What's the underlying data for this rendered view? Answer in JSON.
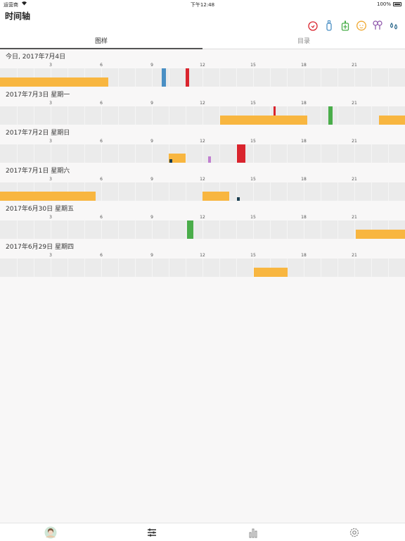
{
  "status_bar": {
    "carrier": "运营商",
    "time": "下午12:48",
    "battery": "100%"
  },
  "header": {
    "title": "时间轴",
    "icons": [
      "diaper-icon",
      "bottle-icon",
      "food-icon",
      "baby-face-icon",
      "pump-icon",
      "drops-icon"
    ]
  },
  "tabs": [
    {
      "label": "图样",
      "active": true
    },
    {
      "label": "目录",
      "active": false
    }
  ],
  "hour_ticks": [
    "3",
    "6",
    "9",
    "12",
    "15",
    "18",
    "21"
  ],
  "colors": {
    "sleep": "#f8b640",
    "bottle": "#4a8fc4",
    "diaper": "#d9242d",
    "food": "#4aad4a",
    "pump": "#c07fd0",
    "note": "#1c3f50"
  },
  "days": [
    {
      "label": "今日, 2017年7月4日",
      "events": [
        {
          "type": "sleep",
          "start": 0,
          "end": 6.4
        },
        {
          "type": "bottle",
          "start": 9.6,
          "end": 9.85
        },
        {
          "type": "diaper",
          "start": 11.0,
          "end": 11.2
        }
      ]
    },
    {
      "label": "2017年7月3日 星期一",
      "events": [
        {
          "type": "diaper",
          "start": 16.2,
          "end": 16.35,
          "thin": true
        },
        {
          "type": "sleep",
          "start": 13.05,
          "end": 18.2
        },
        {
          "type": "food",
          "start": 19.45,
          "end": 19.7
        },
        {
          "type": "sleep",
          "start": 22.45,
          "end": 24
        }
      ]
    },
    {
      "label": "2017年7月2日 星期日",
      "events": [
        {
          "type": "sleep",
          "start": 10.0,
          "end": 11.0
        },
        {
          "type": "note",
          "start": 10.05,
          "end": 10.2,
          "small": true
        },
        {
          "type": "pump",
          "start": 12.35,
          "end": 12.5
        },
        {
          "type": "diaper",
          "start": 14.05,
          "end": 14.55
        }
      ]
    },
    {
      "label": "2017年7月1日 星期六",
      "events": [
        {
          "type": "sleep",
          "start": 0,
          "end": 5.65
        },
        {
          "type": "sleep",
          "start": 12.0,
          "end": 13.6
        },
        {
          "type": "note",
          "start": 14.05,
          "end": 14.2,
          "small": true
        }
      ]
    },
    {
      "label": "2017年6月30日 星期五",
      "events": [
        {
          "type": "food",
          "start": 11.1,
          "end": 11.45
        },
        {
          "type": "sleep",
          "start": 21.1,
          "end": 24
        }
      ]
    },
    {
      "label": "2017年6月29日 星期四",
      "events": [
        {
          "type": "sleep",
          "start": 15.05,
          "end": 17.05
        }
      ]
    }
  ],
  "bottom_tabs": [
    "profile-avatar",
    "settings-sliders-icon",
    "stats-bars-icon",
    "gear-icon"
  ]
}
